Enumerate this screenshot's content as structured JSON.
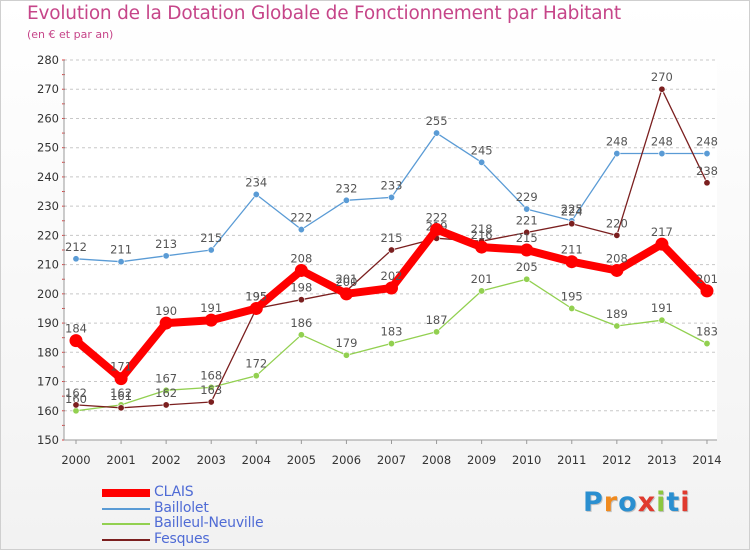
{
  "title": "Evolution de la Dotation Globale de Fonctionnement par Habitant",
  "subtitle": "(en € et par an)",
  "logo": {
    "text": "Proxiti",
    "letters": [
      "P",
      "r",
      "o",
      "x",
      "i",
      "t",
      "i"
    ],
    "colors": [
      "#2a8fd0",
      "#f08a1e",
      "#2a8fd0",
      "#e03a2e",
      "#8cc63f",
      "#2a8fd0",
      "#e03a2e"
    ]
  },
  "chart_data": {
    "type": "line",
    "title": "Evolution de la Dotation Globale de Fonctionnement par Habitant",
    "subtitle": "(en € et par an)",
    "xlabel": "",
    "ylabel": "",
    "x": [
      "2000",
      "2001",
      "2002",
      "2003",
      "2004",
      "2005",
      "2006",
      "2007",
      "2008",
      "2009",
      "2010",
      "2011",
      "2012",
      "2013",
      "2014"
    ],
    "ylim": [
      150,
      280
    ],
    "yticks": [
      "150",
      "160",
      "170",
      "180",
      "190",
      "200",
      "210",
      "220",
      "230",
      "240",
      "250",
      "260",
      "270",
      "280"
    ],
    "grid": "horizontal",
    "legend_position": "bottom-left",
    "series": [
      {
        "name": "Baillolet",
        "color": "#5a9bd5",
        "values": [
          212,
          211,
          213,
          215,
          234,
          222,
          232,
          233,
          255,
          245,
          229,
          225,
          248,
          248,
          248
        ]
      },
      {
        "name": "Bailleul-Neuville",
        "color": "#92d050",
        "values": [
          160,
          162,
          167,
          168,
          172,
          186,
          179,
          183,
          187,
          201,
          205,
          195,
          189,
          191,
          183
        ]
      },
      {
        "name": "Fesques",
        "color": "#7b1f1f",
        "values": [
          162,
          161,
          162,
          163,
          195,
          198,
          201,
          215,
          219,
          218,
          221,
          224,
          220,
          270,
          238
        ]
      },
      {
        "name": "CLAIS",
        "color": "#ff0000",
        "values": [
          184,
          171,
          190,
          191,
          195,
          208,
          200,
          202,
          222,
          216,
          215,
          211,
          208,
          217,
          201
        ]
      }
    ],
    "legend_order": [
      "CLAIS",
      "Baillolet",
      "Bailleul-Neuville",
      "Fesques"
    ]
  }
}
